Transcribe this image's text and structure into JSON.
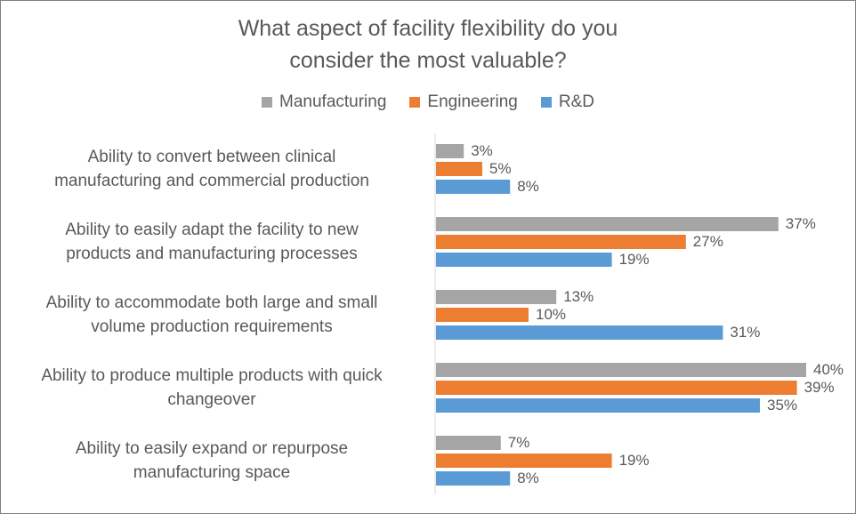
{
  "chart_data": {
    "type": "bar",
    "orientation": "horizontal",
    "title": "What aspect of facility flexibility do you consider the most valuable?",
    "title_lines": [
      "What aspect of facility flexibility do you",
      "consider the most valuable?"
    ],
    "categories": [
      "Ability to convert between clinical manufacturing and commercial production",
      "Ability to easily adapt the facility to new products and manufacturing processes",
      "Ability to accommodate both large and small volume production requirements",
      "Ability to produce multiple products with quick changeover",
      "Ability to easily expand or repurpose manufacturing space"
    ],
    "category_lines": [
      [
        "Ability to convert between clinical",
        "manufacturing and commercial production"
      ],
      [
        "Ability to easily adapt the facility to new",
        "products and manufacturing processes"
      ],
      [
        "Ability to accommodate both large and small",
        "volume production requirements"
      ],
      [
        "Ability to produce multiple products with quick",
        "changeover"
      ],
      [
        "Ability to easily expand or repurpose",
        "manufacturing space"
      ]
    ],
    "series": [
      {
        "name": "Manufacturing",
        "color": "#a5a5a5",
        "values": [
          3,
          37,
          13,
          40,
          7
        ],
        "labels": [
          "3%",
          "37%",
          "13%",
          "40%",
          "7%"
        ]
      },
      {
        "name": "Engineering",
        "color": "#ed7d31",
        "values": [
          5,
          27,
          10,
          39,
          19
        ],
        "labels": [
          "5%",
          "27%",
          "10%",
          "39%",
          "19%"
        ]
      },
      {
        "name": "R&D",
        "color": "#5b9bd5",
        "values": [
          8,
          19,
          31,
          35,
          8
        ],
        "labels": [
          "8%",
          "19%",
          "31%",
          "35%",
          "8%"
        ]
      }
    ],
    "xlim": [
      0,
      40
    ],
    "value_unit": "%",
    "legend_position": "top",
    "grid": false
  }
}
